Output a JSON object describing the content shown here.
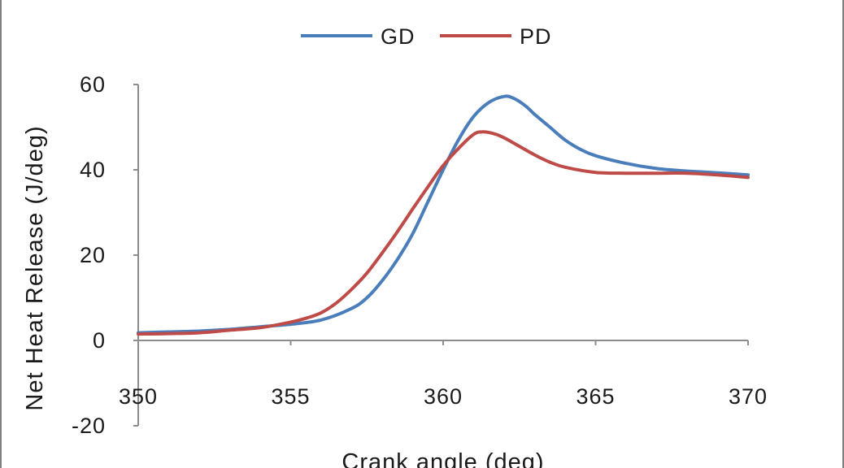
{
  "chart_data": {
    "type": "line",
    "title": "",
    "xlabel": "Crank angle  (deg)",
    "ylabel": "Net Heat Release  (J/deg)",
    "xlim": [
      350,
      370
    ],
    "ylim": [
      -20,
      60
    ],
    "x_ticks": [
      350,
      355,
      360,
      365,
      370
    ],
    "y_ticks": [
      -20,
      0,
      20,
      40,
      60
    ],
    "grid": false,
    "legend_position": "top",
    "series": [
      {
        "name": "GD",
        "color": "#4a7ebb",
        "x": [
          350,
          351,
          352,
          353,
          354,
          355,
          356,
          357,
          357.5,
          358,
          358.5,
          359,
          359.5,
          360,
          360.5,
          361,
          361.5,
          362,
          362.3,
          362.7,
          363,
          363.5,
          364,
          364.5,
          365,
          366,
          367,
          368,
          369,
          370
        ],
        "y": [
          1.8,
          2.0,
          2.2,
          2.6,
          3.2,
          3.8,
          4.8,
          7.5,
          10.0,
          14.0,
          19.0,
          25.0,
          32.5,
          40.0,
          47.0,
          52.5,
          55.8,
          57.2,
          56.8,
          55.0,
          53.0,
          50.0,
          47.0,
          44.8,
          43.3,
          41.5,
          40.3,
          39.7,
          39.3,
          38.8
        ]
      },
      {
        "name": "PD",
        "color": "#be4b48",
        "x": [
          350,
          351,
          352,
          353,
          354,
          355,
          355.5,
          356,
          356.5,
          357,
          357.5,
          358,
          358.5,
          359,
          359.5,
          360,
          360.5,
          361,
          361.3,
          361.7,
          362,
          362.5,
          363,
          363.5,
          364,
          365,
          366,
          367,
          368,
          369,
          370
        ],
        "y": [
          1.5,
          1.6,
          1.8,
          2.4,
          3.0,
          4.3,
          5.2,
          6.5,
          8.8,
          12.0,
          15.8,
          20.5,
          25.5,
          30.8,
          36.0,
          41.0,
          45.0,
          48.3,
          48.9,
          48.4,
          47.5,
          45.5,
          43.5,
          41.8,
          40.6,
          39.4,
          39.2,
          39.2,
          39.2,
          38.8,
          38.2
        ]
      }
    ]
  }
}
